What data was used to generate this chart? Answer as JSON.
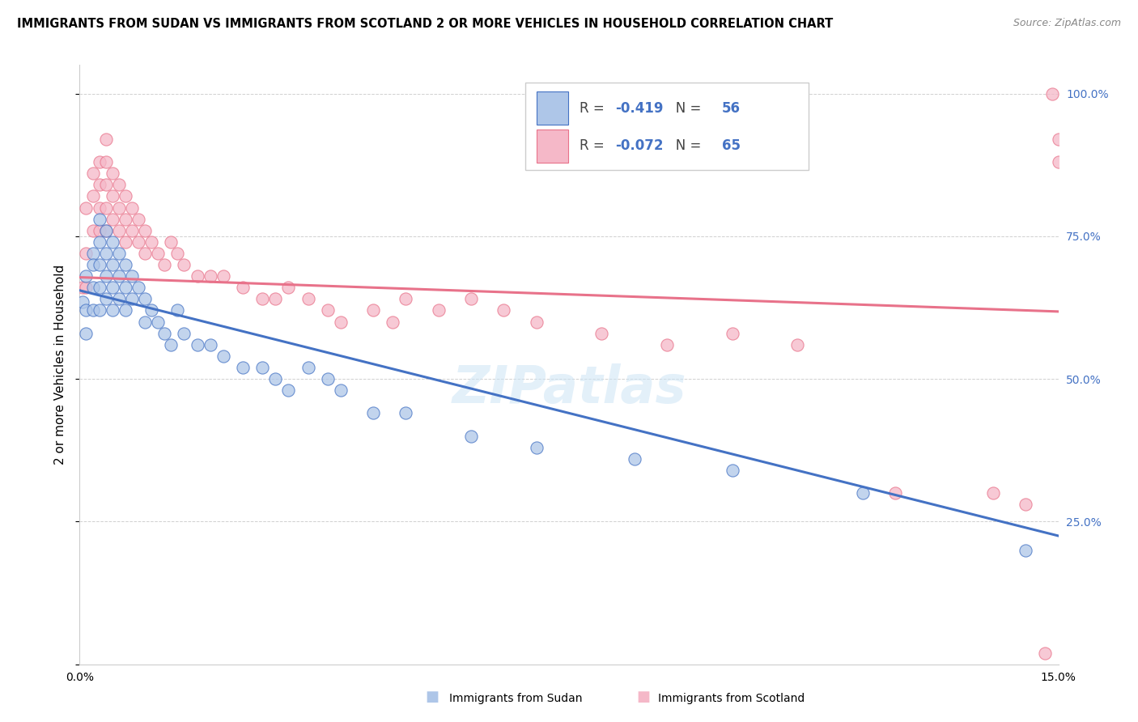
{
  "title": "IMMIGRANTS FROM SUDAN VS IMMIGRANTS FROM SCOTLAND 2 OR MORE VEHICLES IN HOUSEHOLD CORRELATION CHART",
  "source": "Source: ZipAtlas.com",
  "ylabel": "2 or more Vehicles in Household",
  "xlim": [
    0.0,
    0.15
  ],
  "ylim": [
    0.0,
    1.05
  ],
  "sudan_color": "#aec6e8",
  "scotland_color": "#f5b8c8",
  "sudan_line_color": "#4472c4",
  "scotland_line_color": "#e8728a",
  "sudan_R": -0.419,
  "sudan_N": 56,
  "scotland_R": -0.072,
  "scotland_N": 65,
  "watermark": "ZIPatlas",
  "sudan_line_x0": 0.0,
  "sudan_line_y0": 0.655,
  "sudan_line_x1": 0.15,
  "sudan_line_y1": 0.225,
  "scotland_line_x0": 0.0,
  "scotland_line_y0": 0.678,
  "scotland_line_x1": 0.15,
  "scotland_line_y1": 0.618,
  "sudan_x": [
    0.0005,
    0.001,
    0.001,
    0.001,
    0.002,
    0.002,
    0.002,
    0.002,
    0.003,
    0.003,
    0.003,
    0.003,
    0.003,
    0.004,
    0.004,
    0.004,
    0.004,
    0.005,
    0.005,
    0.005,
    0.005,
    0.006,
    0.006,
    0.006,
    0.007,
    0.007,
    0.007,
    0.008,
    0.008,
    0.009,
    0.01,
    0.01,
    0.011,
    0.012,
    0.013,
    0.014,
    0.015,
    0.016,
    0.018,
    0.02,
    0.022,
    0.025,
    0.028,
    0.03,
    0.032,
    0.035,
    0.038,
    0.04,
    0.045,
    0.05,
    0.06,
    0.07,
    0.085,
    0.1,
    0.12,
    0.145
  ],
  "sudan_y": [
    0.635,
    0.68,
    0.62,
    0.58,
    0.72,
    0.7,
    0.66,
    0.62,
    0.78,
    0.74,
    0.7,
    0.66,
    0.62,
    0.76,
    0.72,
    0.68,
    0.64,
    0.74,
    0.7,
    0.66,
    0.62,
    0.72,
    0.68,
    0.64,
    0.7,
    0.66,
    0.62,
    0.68,
    0.64,
    0.66,
    0.64,
    0.6,
    0.62,
    0.6,
    0.58,
    0.56,
    0.62,
    0.58,
    0.56,
    0.56,
    0.54,
    0.52,
    0.52,
    0.5,
    0.48,
    0.52,
    0.5,
    0.48,
    0.44,
    0.44,
    0.4,
    0.38,
    0.36,
    0.34,
    0.3,
    0.2
  ],
  "scotland_x": [
    0.0005,
    0.001,
    0.001,
    0.001,
    0.002,
    0.002,
    0.002,
    0.003,
    0.003,
    0.003,
    0.003,
    0.004,
    0.004,
    0.004,
    0.004,
    0.004,
    0.005,
    0.005,
    0.005,
    0.006,
    0.006,
    0.006,
    0.007,
    0.007,
    0.007,
    0.008,
    0.008,
    0.009,
    0.009,
    0.01,
    0.01,
    0.011,
    0.012,
    0.013,
    0.014,
    0.015,
    0.016,
    0.018,
    0.02,
    0.022,
    0.025,
    0.028,
    0.03,
    0.032,
    0.035,
    0.038,
    0.04,
    0.045,
    0.048,
    0.05,
    0.055,
    0.06,
    0.065,
    0.07,
    0.08,
    0.09,
    0.1,
    0.11,
    0.125,
    0.14,
    0.145,
    0.148,
    0.149,
    0.15,
    0.15
  ],
  "scotland_y": [
    0.66,
    0.8,
    0.72,
    0.66,
    0.86,
    0.82,
    0.76,
    0.88,
    0.84,
    0.8,
    0.76,
    0.92,
    0.88,
    0.84,
    0.8,
    0.76,
    0.86,
    0.82,
    0.78,
    0.84,
    0.8,
    0.76,
    0.82,
    0.78,
    0.74,
    0.8,
    0.76,
    0.78,
    0.74,
    0.76,
    0.72,
    0.74,
    0.72,
    0.7,
    0.74,
    0.72,
    0.7,
    0.68,
    0.68,
    0.68,
    0.66,
    0.64,
    0.64,
    0.66,
    0.64,
    0.62,
    0.6,
    0.62,
    0.6,
    0.64,
    0.62,
    0.64,
    0.62,
    0.6,
    0.58,
    0.56,
    0.58,
    0.56,
    0.3,
    0.3,
    0.28,
    0.02,
    1.0,
    0.92,
    0.88
  ]
}
